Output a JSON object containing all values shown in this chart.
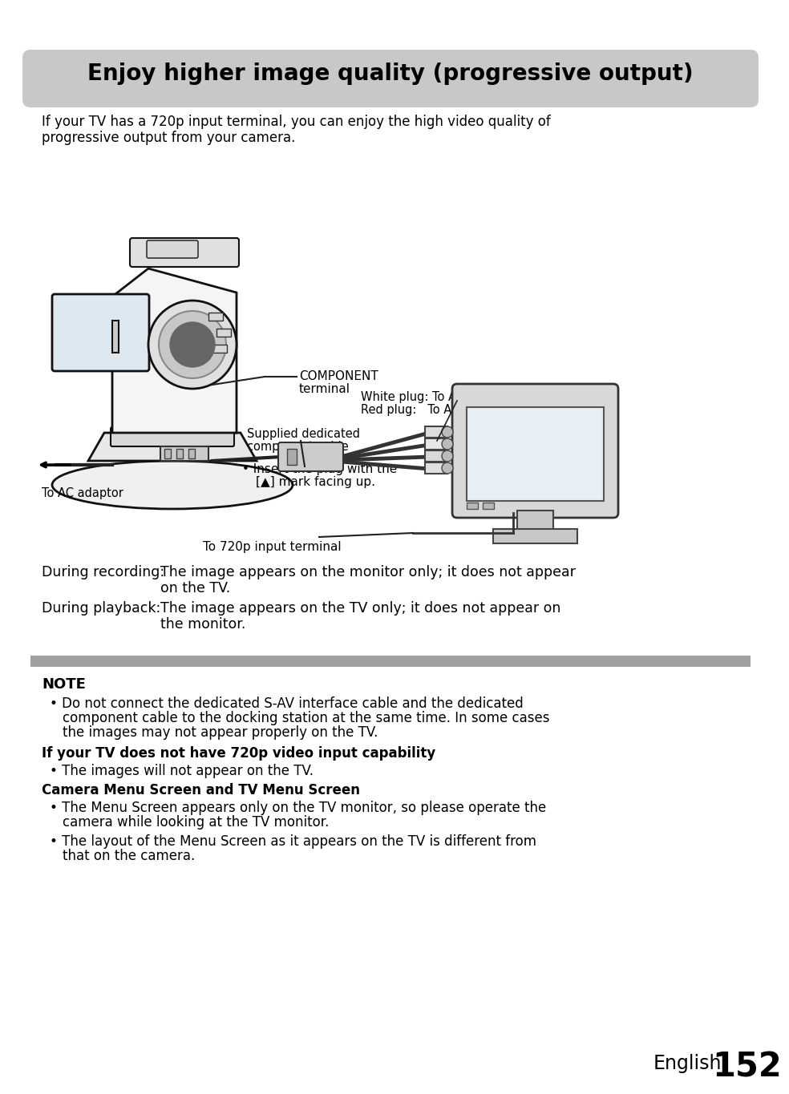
{
  "title": "Enjoy higher image quality (progressive output)",
  "title_bg": "#c8c8c8",
  "page_bg": "#ffffff",
  "intro_line1": "If your TV has a 720p input terminal, you can enjoy the high video quality of",
  "intro_line2": "progressive output from your camera.",
  "label_component_1": "COMPONENT",
  "label_component_2": "terminal",
  "label_white_plug": "White plug: To Audio Input (L) terminal",
  "label_red_plug": "Red plug:   To Audio Input (R) terminal",
  "label_supplied_1": "Supplied dedicated",
  "label_supplied_2": "component cable",
  "label_insert_1": "• Insert the plug with the",
  "label_insert_2": "[▲] mark facing up.",
  "label_ac": "To AC adaptor",
  "label_720p": "To 720p input terminal",
  "rec_label": "During recording:",
  "rec_text1": "The image appears on the monitor only; it does not appear",
  "rec_text2": "on the TV.",
  "pb_label": "During playback:",
  "pb_text1": "The image appears on the TV only; it does not appear on",
  "pb_text2": "the monitor.",
  "note_title": "NOTE",
  "b1_text1": "Do not connect the dedicated S-AV interface cable and the dedicated",
  "b1_text2": "component cable to the docking station at the same time. In some cases",
  "b1_text3": "the images may not appear properly on the TV.",
  "bold1": "If your TV does not have 720p video input capability",
  "b2_text": "The images will not appear on the TV.",
  "bold2": "Camera Menu Screen and TV Menu Screen",
  "b3_text1": "The Menu Screen appears only on the TV monitor, so please operate the",
  "b3_text2": "camera while looking at the TV monitor.",
  "b4_text1": "The layout of the Menu Screen as it appears on the TV is different from",
  "b4_text2": "that on the camera.",
  "footer_label": "English",
  "footer_num": "152",
  "sep_color": "#a0a0a0",
  "text_color": "#000000"
}
